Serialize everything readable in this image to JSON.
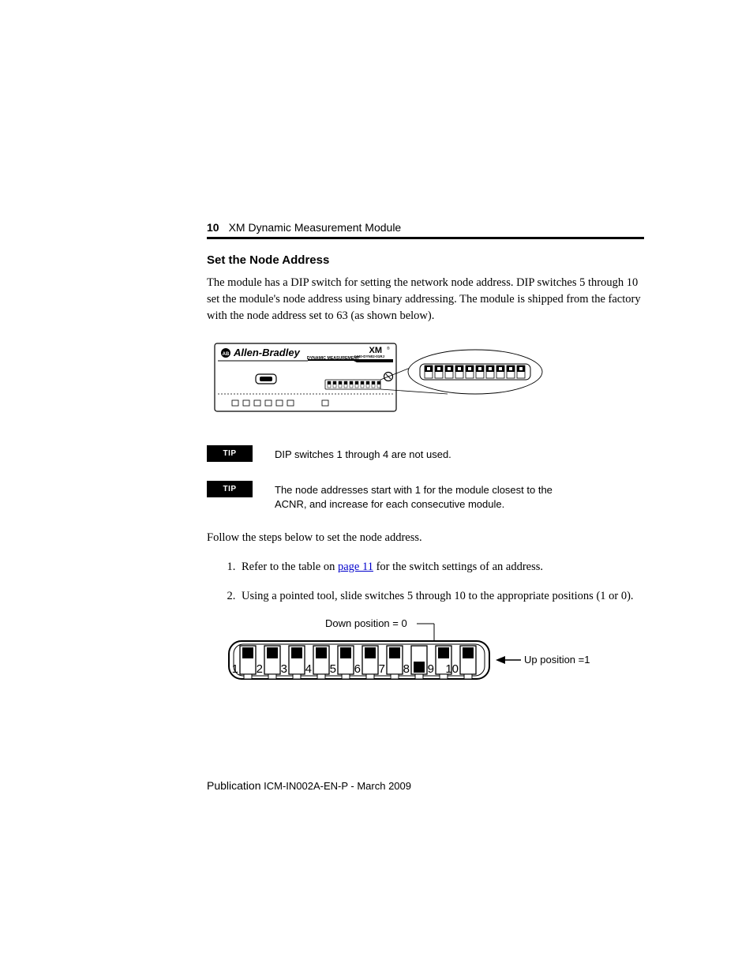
{
  "header": {
    "page_number": "10",
    "doc_title": "XM Dynamic Measurement Module"
  },
  "section": {
    "title": "Set the Node Address",
    "paragraph": "The module has a DIP switch for setting the network node address. DIP switches 5 through 10 set the module's node address using binary addressing. The module is shipped from the factory with the node address set to 63 (as shown below)."
  },
  "module_diagram": {
    "brand": "Allen-Bradley",
    "subbrand": "DYNAMIC MEASUREMENT",
    "product_label": "XM",
    "product_sub": "1440-DYN02-01RJ",
    "dip_switch_count": 10,
    "dip_positions_up": [
      1,
      1,
      1,
      1,
      1,
      1,
      1,
      1,
      1,
      1
    ],
    "zoom_dip_positions_up": [
      1,
      1,
      1,
      1,
      1,
      1,
      1,
      1,
      1,
      1
    ],
    "colors": {
      "panel_border": "#000000",
      "panel_bg": "#ffffff",
      "brand_text": "#000000",
      "reg_mark": "®"
    }
  },
  "tips": [
    {
      "label": "TIP",
      "text": "DIP switches 1 through 4 are not used."
    },
    {
      "label": "TIP",
      "text": "The node addresses start with 1 for the module closest to the ACNR, and increase for each consecutive module."
    }
  ],
  "follow_text": "Follow the steps below to set the node address.",
  "steps": {
    "item1_pre": "Refer to the table on ",
    "item1_link": "page 11",
    "item1_post": " for the switch settings of an address.",
    "item2": "Using a pointed tool, slide switches 5 through 10 to the appropriate positions (1 or 0)."
  },
  "dip_figure": {
    "down_label": "Down position = 0",
    "up_label": "Up position =1",
    "switch_numbers": [
      "1",
      "2",
      "3",
      "4",
      "5",
      "6",
      "7",
      "8",
      "9",
      "10"
    ],
    "positions_up": [
      1,
      1,
      1,
      1,
      1,
      1,
      1,
      0,
      1,
      1
    ],
    "colors": {
      "outline": "#000000",
      "slot_fill": "#ffffff",
      "switch_fill": "#000000"
    }
  },
  "footer": {
    "publication_label": "Publication",
    "publication_id": " ICM-IN002A-EN-P - March 2009"
  }
}
